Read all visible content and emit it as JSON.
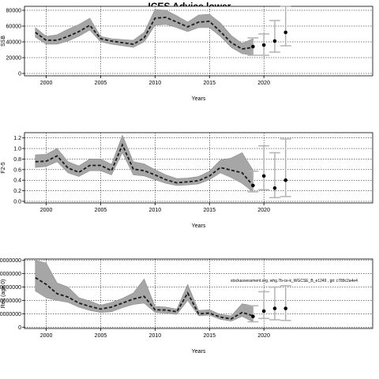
{
  "title": "ICES Advice lower",
  "source_note": "stockassessment.org, whg.7b-ce-k_WGCSE_B_e1249 , git: c789c2a4e4",
  "chart_data": [
    {
      "type": "line",
      "xlabel": "Years",
      "ylabel": "SSB",
      "xlim": [
        1998,
        2030
      ],
      "ylim": [
        -3000,
        85000
      ],
      "xticks": [
        2000,
        2005,
        2010,
        2015,
        2020
      ],
      "yticks": [
        0,
        20000,
        40000,
        60000,
        80000
      ],
      "grid": true,
      "x": [
        1999,
        2000,
        2001,
        2002,
        2003,
        2004,
        2005,
        2006,
        2007,
        2008,
        2009,
        2010,
        2011,
        2012,
        2013,
        2014,
        2015,
        2016,
        2017,
        2018,
        2019
      ],
      "estimate": [
        52000,
        42000,
        42000,
        47000,
        53000,
        61000,
        44000,
        41000,
        39000,
        37000,
        45000,
        70000,
        71000,
        65000,
        59000,
        65000,
        66000,
        53000,
        39000,
        31000,
        33000
      ],
      "lower": [
        46000,
        37000,
        37000,
        41000,
        47000,
        55000,
        40000,
        37000,
        35000,
        33000,
        40000,
        61000,
        62000,
        58000,
        53000,
        58000,
        58000,
        47000,
        33000,
        25000,
        23000
      ],
      "upper": [
        58000,
        47000,
        49000,
        56000,
        62000,
        70000,
        47000,
        44000,
        43000,
        42000,
        52000,
        81000,
        80000,
        73000,
        65000,
        74000,
        75000,
        64000,
        48000,
        38000,
        44000
      ],
      "forecast": [
        {
          "x": 2019,
          "y": 34000,
          "low": 23000,
          "high": 45000
        },
        {
          "x": 2020,
          "y": 36000,
          "low": 23000,
          "high": 50000
        },
        {
          "x": 2021,
          "y": 41000,
          "low": 27000,
          "high": 67000
        },
        {
          "x": 2022,
          "y": 52000,
          "low": 35000,
          "high": 85000
        }
      ]
    },
    {
      "type": "line",
      "xlabel": "Years",
      "ylabel": "F2-5",
      "xlim": [
        1998,
        2030
      ],
      "ylim": [
        -0.03,
        1.3
      ],
      "xticks": [
        2000,
        2005,
        2010,
        2015,
        2020
      ],
      "yticks": [
        0.0,
        0.2,
        0.4,
        0.6,
        0.8,
        1.0,
        1.2
      ],
      "ytick_labels": [
        "0.0",
        "0.2",
        "0.4",
        "0.6",
        "0.8",
        "1.0",
        "1.2"
      ],
      "grid": true,
      "x": [
        1999,
        2000,
        2001,
        2002,
        2003,
        2004,
        2005,
        2006,
        2007,
        2008,
        2009,
        2010,
        2011,
        2012,
        2013,
        2014,
        2015,
        2016,
        2017,
        2018,
        2019
      ],
      "estimate": [
        0.75,
        0.76,
        0.86,
        0.63,
        0.55,
        0.68,
        0.68,
        0.58,
        1.07,
        0.61,
        0.58,
        0.5,
        0.41,
        0.35,
        0.37,
        0.39,
        0.48,
        0.64,
        0.59,
        0.54,
        0.3
      ],
      "lower": [
        0.64,
        0.66,
        0.75,
        0.54,
        0.47,
        0.58,
        0.58,
        0.5,
        0.92,
        0.5,
        0.48,
        0.41,
        0.34,
        0.3,
        0.31,
        0.33,
        0.41,
        0.54,
        0.45,
        0.34,
        0.18
      ],
      "upper": [
        0.88,
        0.89,
        1.0,
        0.75,
        0.67,
        0.8,
        0.8,
        0.7,
        1.25,
        0.75,
        0.71,
        0.6,
        0.5,
        0.43,
        0.44,
        0.47,
        0.57,
        0.78,
        0.82,
        0.92,
        0.59
      ],
      "forecast": [
        {
          "x": 2019,
          "y": 0.3,
          "low": 0.18,
          "high": 0.57
        },
        {
          "x": 2020,
          "y": 0.48,
          "low": 0.22,
          "high": 1.05
        },
        {
          "x": 2021,
          "y": 0.25,
          "low": 0.07,
          "high": 0.92
        },
        {
          "x": 2022,
          "y": 0.4,
          "low": 0.09,
          "high": 1.18
        }
      ]
    },
    {
      "type": "line",
      "xlabel": "Years",
      "ylabel": "Rec (age 0)",
      "xlim": [
        1998,
        2030
      ],
      "ylim": [
        -10000000,
        510000000
      ],
      "xticks": [
        2000,
        2005,
        2010,
        2015,
        2020
      ],
      "yticks": [
        0,
        100000000,
        200000000,
        300000000,
        400000000,
        500000000
      ],
      "ytick_labels": [
        "0",
        "100000000",
        "200000000",
        "300000000",
        "400000000",
        "500000000"
      ],
      "grid": true,
      "x": [
        1999,
        2000,
        2001,
        2002,
        2003,
        2004,
        2005,
        2006,
        2007,
        2008,
        2009,
        2010,
        2011,
        2012,
        2013,
        2014,
        2015,
        2016,
        2017,
        2018,
        2019
      ],
      "estimate": [
        370000000,
        320000000,
        250000000,
        225000000,
        180000000,
        155000000,
        135000000,
        150000000,
        180000000,
        210000000,
        230000000,
        130000000,
        128000000,
        115000000,
        255000000,
        100000000,
        105000000,
        75000000,
        62000000,
        110000000,
        85000000
      ],
      "lower": [
        270000000,
        220000000,
        200000000,
        185000000,
        150000000,
        125000000,
        110000000,
        115000000,
        145000000,
        170000000,
        180000000,
        110000000,
        105000000,
        95000000,
        200000000,
        85000000,
        90000000,
        58000000,
        45000000,
        80000000,
        40000000
      ],
      "upper": [
        500000000,
        480000000,
        330000000,
        300000000,
        220000000,
        195000000,
        165000000,
        185000000,
        215000000,
        255000000,
        360000000,
        155000000,
        150000000,
        135000000,
        320000000,
        125000000,
        130000000,
        95000000,
        85000000,
        175000000,
        160000000
      ],
      "forecast": [
        {
          "x": 2019,
          "y": 80000000,
          "low": 40000000,
          "high": 160000000
        },
        {
          "x": 2020,
          "y": 120000000,
          "low": 65000000,
          "high": 265000000
        },
        {
          "x": 2021,
          "y": 140000000,
          "low": 55000000,
          "high": 300000000
        },
        {
          "x": 2022,
          "y": 140000000,
          "low": 50000000,
          "high": 310000000
        }
      ]
    }
  ],
  "colors": {
    "band": "#a6a6a6",
    "band_edge": "#8c8c8c",
    "line": "#1a1a1a",
    "forecast_bar": "#b3b3b3",
    "point": "#000000",
    "grid": "#000000"
  }
}
